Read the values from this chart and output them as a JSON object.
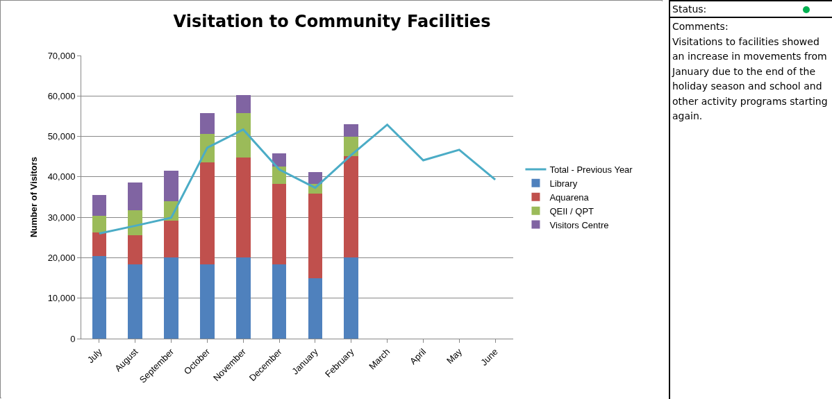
{
  "chart_data": {
    "type": "bar",
    "title": "Visitation to Community Facilities",
    "ylabel": "Number of Visitors",
    "categories": [
      "July",
      "August",
      "September",
      "October",
      "November",
      "December",
      "January",
      "February",
      "March",
      "April",
      "May",
      "June"
    ],
    "stacked": true,
    "grid": "y",
    "legend": "right",
    "marker": "none",
    "ylim": [
      0,
      70000
    ],
    "yticks": [
      0,
      {
        "value": 10000,
        "label": "10,000"
      },
      {
        "value": 20000,
        "label": "20,000"
      },
      {
        "value": 30000,
        "label": "30,000"
      },
      {
        "value": 40000,
        "label": "40,000"
      },
      {
        "value": 50000,
        "label": "50,000"
      },
      {
        "value": 60000,
        "label": "60,000"
      },
      {
        "value": 70000,
        "label": "70,000"
      }
    ],
    "series": [
      {
        "name": "Library",
        "color": "#4f81bd",
        "values": [
          20400,
          18400,
          20000,
          18300,
          20000,
          18300,
          14900,
          20000,
          null,
          null,
          null,
          null
        ]
      },
      {
        "name": "Aquarena",
        "color": "#c0504d",
        "values": [
          5900,
          7100,
          9200,
          25300,
          24800,
          19900,
          20900,
          25200,
          null,
          null,
          null,
          null
        ]
      },
      {
        "name": "QEII / QPT",
        "color": "#9bbb59",
        "values": [
          4000,
          6200,
          4700,
          7000,
          10900,
          4400,
          2500,
          4700,
          null,
          null,
          null,
          null
        ]
      },
      {
        "name": "Visitors Centre",
        "color": "#8064a2",
        "values": [
          5300,
          6900,
          7700,
          5100,
          4500,
          3200,
          2900,
          3200,
          null,
          null,
          null,
          null
        ]
      },
      {
        "name": "Total - Previous Year",
        "type": "line",
        "line_style": "solid",
        "color": "#4bacc6",
        "values": [
          26000,
          27900,
          29900,
          47200,
          51700,
          41800,
          37300,
          45400,
          52900,
          44100,
          46700,
          39300
        ]
      }
    ],
    "annotations": [
      "Status:",
      "Comments:",
      "Visitations to facilities showed an increase in movements from January due to the end of the holiday season and school and other activity programs starting again."
    ]
  }
}
